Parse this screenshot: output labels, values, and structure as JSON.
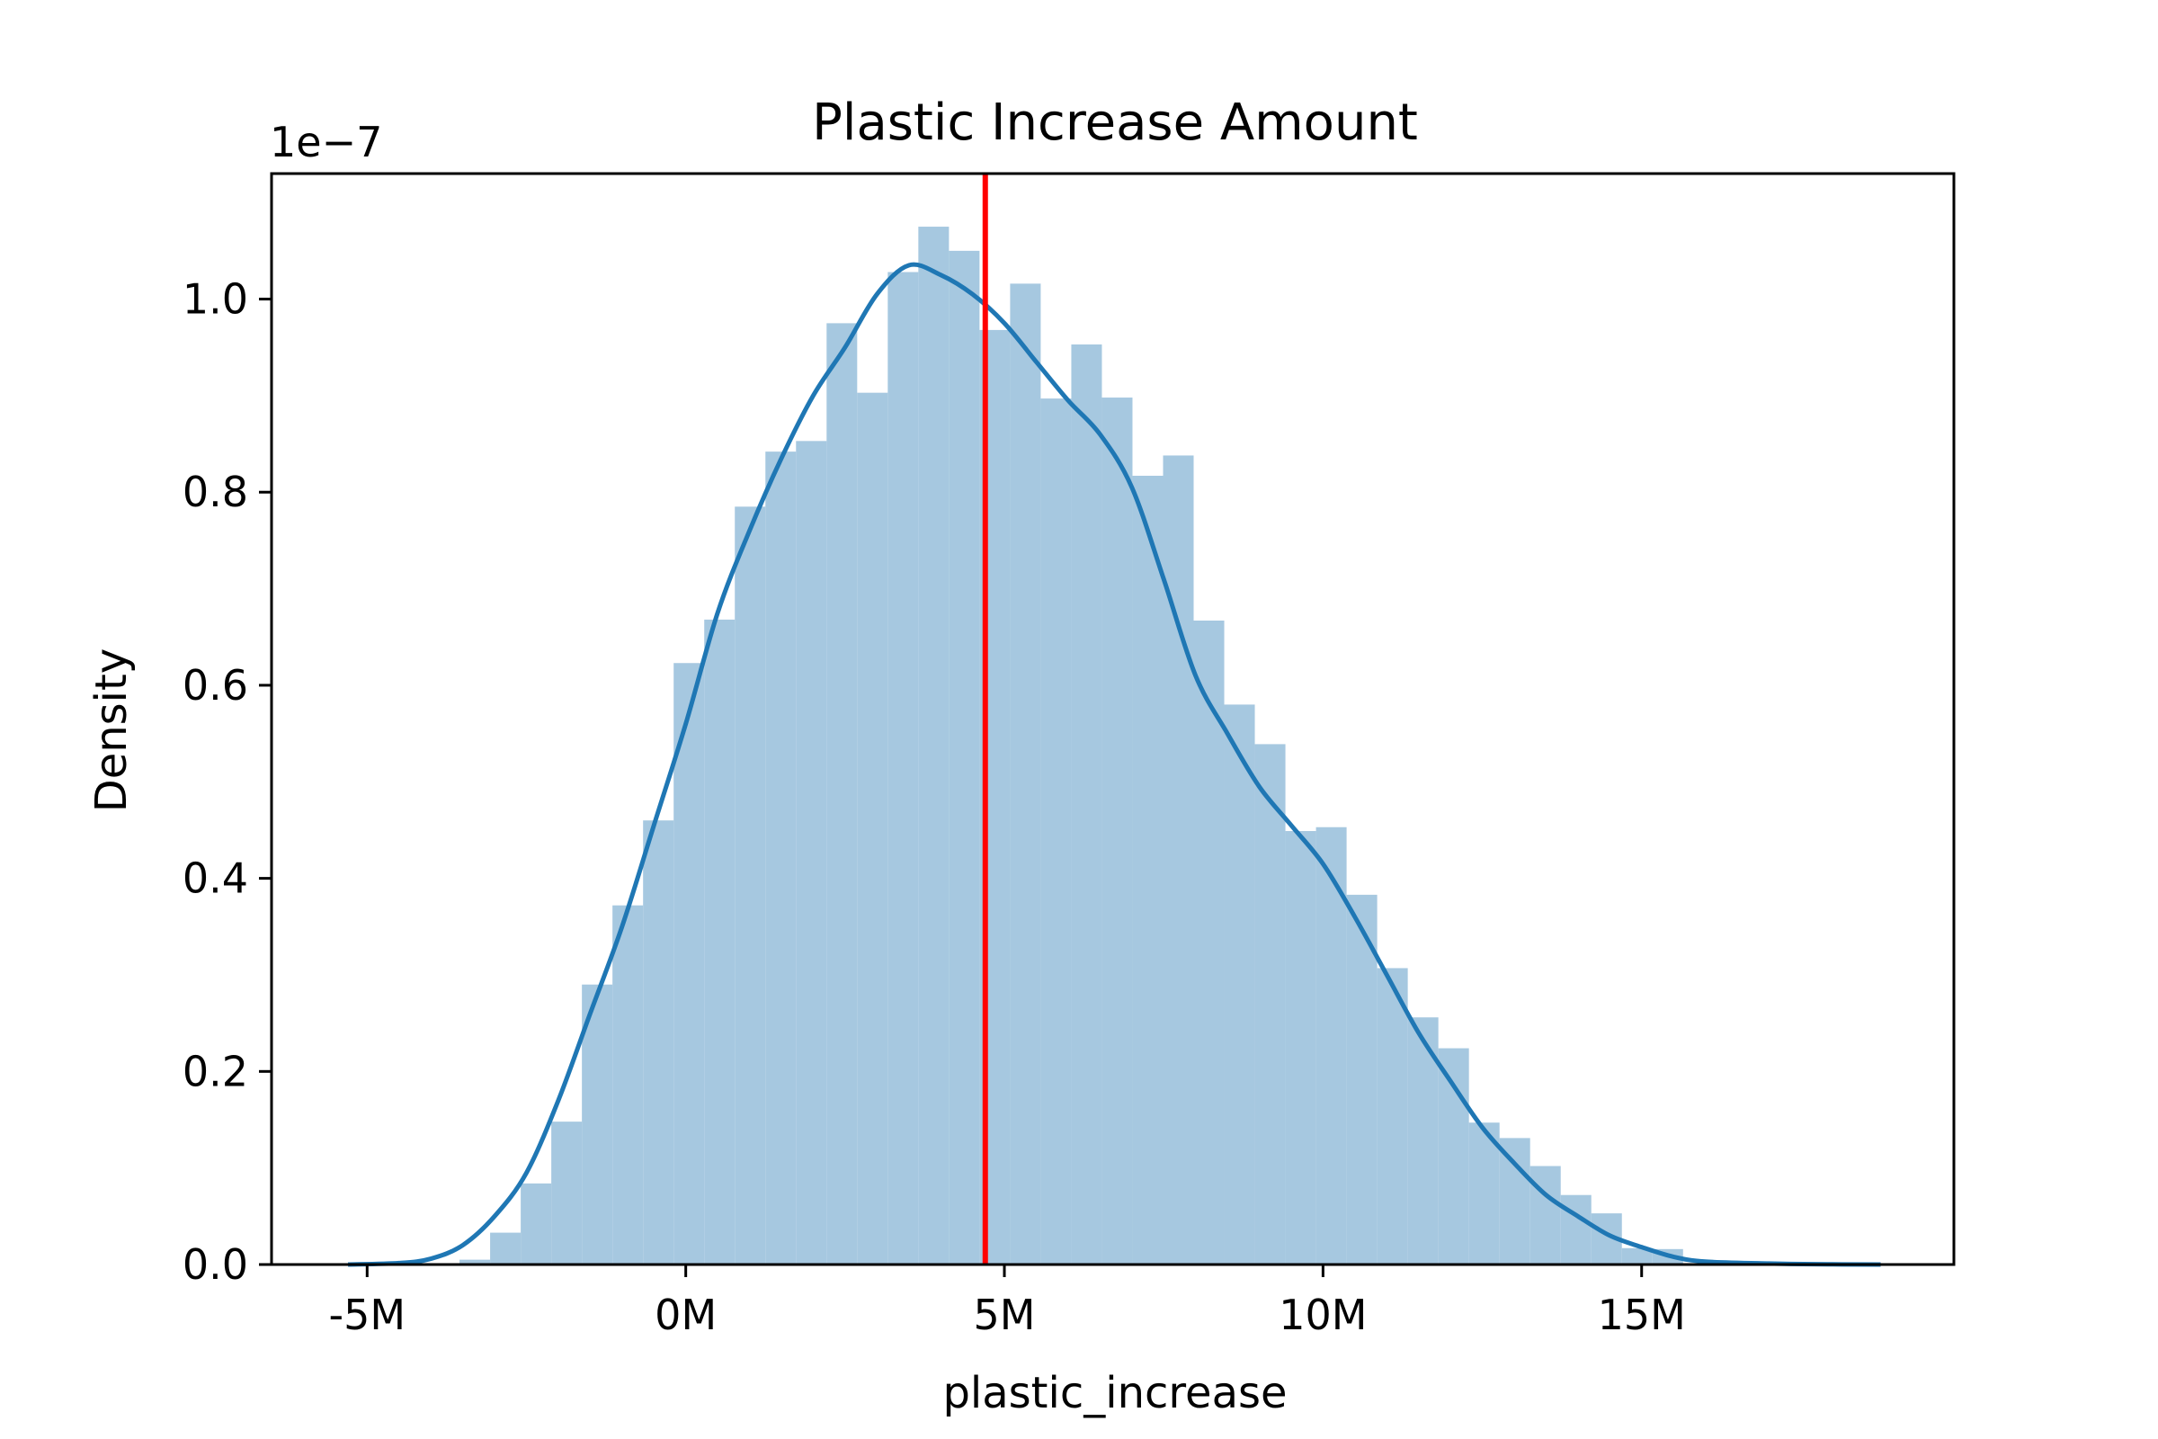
{
  "chart_data": {
    "type": "histogram",
    "title": "Plastic Increase Amount",
    "xlabel": "plastic_increase",
    "ylabel": "Density",
    "y_offset_label": "1e−7",
    "y_scale": 1e-07,
    "xlim": [
      -6500000,
      19900000
    ],
    "ylim": [
      0,
      1.13
    ],
    "x_ticks": [
      {
        "value": -5000000,
        "label": "-5M"
      },
      {
        "value": 0,
        "label": "0M"
      },
      {
        "value": 5000000,
        "label": "5M"
      },
      {
        "value": 10000000,
        "label": "10M"
      },
      {
        "value": 15000000,
        "label": "15M"
      }
    ],
    "y_ticks": [
      {
        "value": 0.0,
        "label": "0.0"
      },
      {
        "value": 0.2,
        "label": "0.2"
      },
      {
        "value": 0.4,
        "label": "0.4"
      },
      {
        "value": 0.6,
        "label": "0.6"
      },
      {
        "value": 0.8,
        "label": "0.8"
      },
      {
        "value": 1.0,
        "label": "1.0"
      }
    ],
    "bin_width": 480000,
    "bins": [
      {
        "x0": -3550000,
        "density": 0.005
      },
      {
        "x0": -3070000,
        "density": 0.033
      },
      {
        "x0": -2590000,
        "density": 0.084
      },
      {
        "x0": -2110000,
        "density": 0.148
      },
      {
        "x0": -1630000,
        "density": 0.29
      },
      {
        "x0": -1150000,
        "density": 0.372
      },
      {
        "x0": -670000,
        "density": 0.46
      },
      {
        "x0": -190000,
        "density": 0.623
      },
      {
        "x0": 290000,
        "density": 0.668
      },
      {
        "x0": 770000,
        "density": 0.785
      },
      {
        "x0": 1250000,
        "density": 0.842
      },
      {
        "x0": 1730000,
        "density": 0.853
      },
      {
        "x0": 2210000,
        "density": 0.975
      },
      {
        "x0": 2690000,
        "density": 0.903
      },
      {
        "x0": 3170000,
        "density": 1.028
      },
      {
        "x0": 3650000,
        "density": 1.075
      },
      {
        "x0": 4130000,
        "density": 1.05
      },
      {
        "x0": 4610000,
        "density": 0.968
      },
      {
        "x0": 5090000,
        "density": 1.016
      },
      {
        "x0": 5570000,
        "density": 0.897
      },
      {
        "x0": 6050000,
        "density": 0.953
      },
      {
        "x0": 6530000,
        "density": 0.898
      },
      {
        "x0": 7010000,
        "density": 0.817
      },
      {
        "x0": 7490000,
        "density": 0.838
      },
      {
        "x0": 7970000,
        "density": 0.667
      },
      {
        "x0": 8450000,
        "density": 0.58
      },
      {
        "x0": 8930000,
        "density": 0.539
      },
      {
        "x0": 9410000,
        "density": 0.449
      },
      {
        "x0": 9890000,
        "density": 0.453
      },
      {
        "x0": 10370000,
        "density": 0.383
      },
      {
        "x0": 10850000,
        "density": 0.307
      },
      {
        "x0": 11330000,
        "density": 0.256
      },
      {
        "x0": 11810000,
        "density": 0.224
      },
      {
        "x0": 12290000,
        "density": 0.147
      },
      {
        "x0": 12770000,
        "density": 0.131
      },
      {
        "x0": 13250000,
        "density": 0.102
      },
      {
        "x0": 13730000,
        "density": 0.072
      },
      {
        "x0": 14210000,
        "density": 0.053
      },
      {
        "x0": 14690000,
        "density": 0.017
      },
      {
        "x0": 15170000,
        "density": 0.016
      }
    ],
    "kde": {
      "x": [
        -5300000,
        -4500000,
        -4000000,
        -3500000,
        -3000000,
        -2500000,
        -2000000,
        -1500000,
        -1000000,
        -500000,
        0,
        500000,
        1000000,
        1500000,
        2000000,
        2500000,
        3000000,
        3500000,
        4000000,
        4500000,
        5000000,
        5500000,
        6000000,
        6500000,
        7000000,
        7500000,
        8000000,
        8500000,
        9000000,
        9500000,
        10000000,
        10500000,
        11000000,
        11500000,
        12000000,
        12500000,
        13000000,
        13500000,
        14000000,
        14500000,
        15000000,
        15500000,
        16000000,
        17000000,
        18000000,
        18750000
      ],
      "y": [
        0.0,
        0.0015,
        0.006,
        0.02,
        0.05,
        0.095,
        0.17,
        0.26,
        0.35,
        0.455,
        0.56,
        0.675,
        0.76,
        0.835,
        0.9,
        0.95,
        1.005,
        1.035,
        1.025,
        1.005,
        0.975,
        0.935,
        0.895,
        0.86,
        0.805,
        0.71,
        0.61,
        0.55,
        0.495,
        0.455,
        0.415,
        0.36,
        0.3,
        0.24,
        0.19,
        0.142,
        0.105,
        0.072,
        0.05,
        0.03,
        0.018,
        0.008,
        0.003,
        0.001,
        0.0002,
        0.0
      ],
      "color": "#1f77b4"
    },
    "hist_color": "#a6c8e0",
    "vline": {
      "x": 4700000,
      "color": "#ff0000"
    },
    "grid": false,
    "legend": "none"
  }
}
